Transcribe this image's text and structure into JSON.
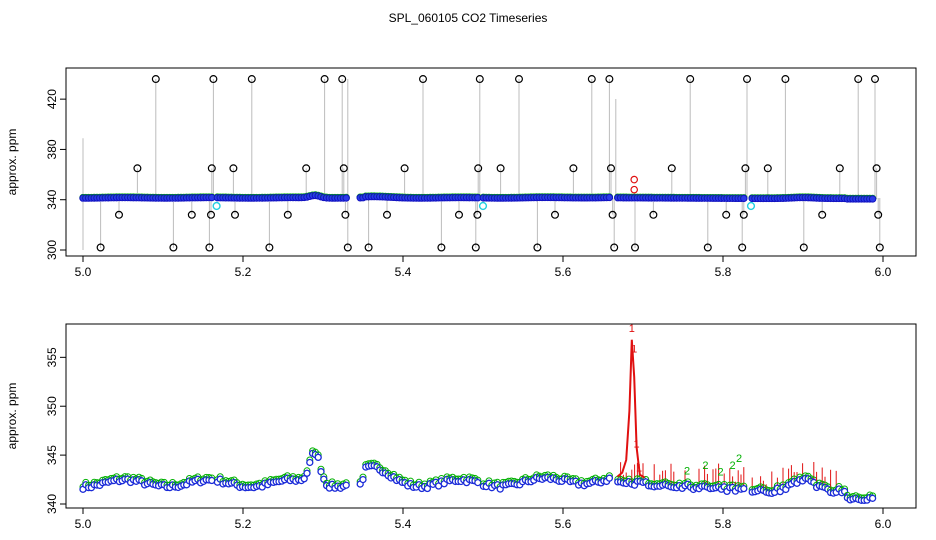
{
  "title": "SPL_060105  CO2 Timeseries",
  "chart_data": [
    {
      "type": "scatter",
      "ylabel": "approx. ppm",
      "xlim": [
        5.0,
        6.0
      ],
      "ylim": [
        300,
        440
      ],
      "x_ticks": [
        "5.0",
        "5.2",
        "5.4",
        "5.6",
        "5.8",
        "6.0"
      ],
      "y_ticks": [
        "300",
        "340",
        "380",
        "420"
      ],
      "spike_points": [
        {
          "x": 5.022,
          "y": 302
        },
        {
          "x": 5.045,
          "y": 328
        },
        {
          "x": 5.068,
          "y": 365
        },
        {
          "x": 5.091,
          "y": 436
        },
        {
          "x": 5.113,
          "y": 302
        },
        {
          "x": 5.136,
          "y": 328
        },
        {
          "x": 5.158,
          "y": 302
        },
        {
          "x": 5.16,
          "y": 328
        },
        {
          "x": 5.161,
          "y": 365
        },
        {
          "x": 5.163,
          "y": 436
        },
        {
          "x": 5.188,
          "y": 365
        },
        {
          "x": 5.19,
          "y": 328
        },
        {
          "x": 5.211,
          "y": 436
        },
        {
          "x": 5.233,
          "y": 302
        },
        {
          "x": 5.256,
          "y": 328
        },
        {
          "x": 5.279,
          "y": 365
        },
        {
          "x": 5.302,
          "y": 436
        },
        {
          "x": 5.324,
          "y": 436
        },
        {
          "x": 5.326,
          "y": 365
        },
        {
          "x": 5.328,
          "y": 328
        },
        {
          "x": 5.331,
          "y": 302
        },
        {
          "x": 5.357,
          "y": 302
        },
        {
          "x": 5.38,
          "y": 328
        },
        {
          "x": 5.402,
          "y": 365
        },
        {
          "x": 5.425,
          "y": 436
        },
        {
          "x": 5.448,
          "y": 302
        },
        {
          "x": 5.47,
          "y": 328
        },
        {
          "x": 5.491,
          "y": 302
        },
        {
          "x": 5.493,
          "y": 328
        },
        {
          "x": 5.494,
          "y": 365
        },
        {
          "x": 5.496,
          "y": 436
        },
        {
          "x": 5.522,
          "y": 365
        },
        {
          "x": 5.545,
          "y": 436
        },
        {
          "x": 5.568,
          "y": 302
        },
        {
          "x": 5.59,
          "y": 328
        },
        {
          "x": 5.613,
          "y": 365
        },
        {
          "x": 5.636,
          "y": 436
        },
        {
          "x": 5.658,
          "y": 436
        },
        {
          "x": 5.66,
          "y": 365
        },
        {
          "x": 5.662,
          "y": 328
        },
        {
          "x": 5.664,
          "y": 302
        },
        {
          "x": 5.69,
          "y": 302
        },
        {
          "x": 5.713,
          "y": 328
        },
        {
          "x": 5.736,
          "y": 365
        },
        {
          "x": 5.759,
          "y": 436
        },
        {
          "x": 5.781,
          "y": 302
        },
        {
          "x": 5.804,
          "y": 328
        },
        {
          "x": 5.824,
          "y": 302
        },
        {
          "x": 5.826,
          "y": 328
        },
        {
          "x": 5.828,
          "y": 365
        },
        {
          "x": 5.83,
          "y": 436
        },
        {
          "x": 5.856,
          "y": 365
        },
        {
          "x": 5.878,
          "y": 436
        },
        {
          "x": 5.901,
          "y": 302
        },
        {
          "x": 5.924,
          "y": 328
        },
        {
          "x": 5.946,
          "y": 365
        },
        {
          "x": 5.969,
          "y": 436
        },
        {
          "x": 5.99,
          "y": 436
        },
        {
          "x": 5.992,
          "y": 365
        },
        {
          "x": 5.994,
          "y": 328
        },
        {
          "x": 5.996,
          "y": 302
        }
      ],
      "cyan_points": [
        {
          "x": 5.167,
          "y": 335
        },
        {
          "x": 5.5,
          "y": 335
        },
        {
          "x": 5.835,
          "y": 335
        }
      ],
      "red_points": [
        {
          "x": 5.689,
          "y": 356
        },
        {
          "x": 5.689,
          "y": 348
        }
      ]
    },
    {
      "type": "scatter",
      "ylabel": "approx. ppm",
      "xlim": [
        5.0,
        6.0
      ],
      "ylim": [
        340,
        358
      ],
      "x_ticks": [
        "5.0",
        "5.2",
        "5.4",
        "5.6",
        "5.8",
        "6.0"
      ],
      "y_ticks": [
        "340",
        "345",
        "350",
        "355"
      ],
      "red_line": [
        {
          "x": 5.668,
          "y": 342.8
        },
        {
          "x": 5.674,
          "y": 343.2
        },
        {
          "x": 5.679,
          "y": 344.5
        },
        {
          "x": 5.683,
          "y": 349.5
        },
        {
          "x": 5.686,
          "y": 356.8
        },
        {
          "x": 5.689,
          "y": 353.0
        },
        {
          "x": 5.692,
          "y": 345.8
        },
        {
          "x": 5.696,
          "y": 343.0
        },
        {
          "x": 5.702,
          "y": 342.7
        }
      ],
      "red_labels": [
        {
          "x": 5.686,
          "y": 357.6,
          "text": "1"
        },
        {
          "x": 5.689,
          "y": 355.5,
          "text": "1"
        },
        {
          "x": 5.692,
          "y": 345.8,
          "text": "1"
        },
        {
          "x": 5.695,
          "y": 343.3,
          "text": "1"
        }
      ],
      "green_labels": [
        {
          "x": 5.755,
          "y": 343.0,
          "text": "2"
        },
        {
          "x": 5.778,
          "y": 343.6,
          "text": "2"
        },
        {
          "x": 5.797,
          "y": 342.9,
          "text": "2"
        },
        {
          "x": 5.812,
          "y": 343.6,
          "text": "2"
        },
        {
          "x": 5.82,
          "y": 344.3,
          "text": "2"
        }
      ]
    }
  ]
}
